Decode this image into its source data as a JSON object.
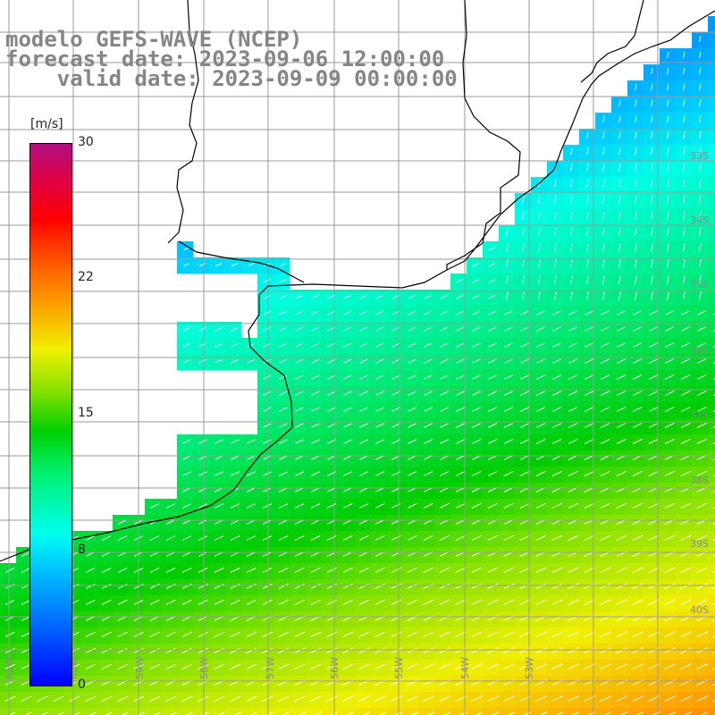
{
  "title": {
    "line1": "modelo GEFS-WAVE (NCEP)",
    "line2": "forecast date: 2023-09-06 12:00:00",
    "line3": "    valid date: 2023-09-09 00:00:00"
  },
  "colorbar": {
    "unit": "[m/s]",
    "ticks": [
      {
        "label": "30",
        "value": 30
      },
      {
        "label": "22",
        "value": 22
      },
      {
        "label": "15",
        "value": 15
      },
      {
        "label": "8",
        "value": 8
      },
      {
        "label": "0",
        "value": 0
      }
    ],
    "colors": [
      "#0000ff",
      "#00c8ff",
      "#00ffee",
      "#00d000",
      "#f0f000",
      "#ff9000",
      "#ff0000",
      "#b01080"
    ]
  },
  "lat_labels": [
    "33S",
    "34S",
    "35S",
    "36S",
    "37S",
    "38S",
    "39S",
    "40S"
  ],
  "lon_labels": [
    "61W",
    "60W",
    "59W",
    "58W",
    "57W",
    "56W",
    "55W",
    "54W",
    "53W"
  ],
  "colors": {
    "land": "#ffffff",
    "grid": "#9a9a9a",
    "coast": "#000000",
    "arrow": "#ffffff",
    "title": "#858585"
  }
}
